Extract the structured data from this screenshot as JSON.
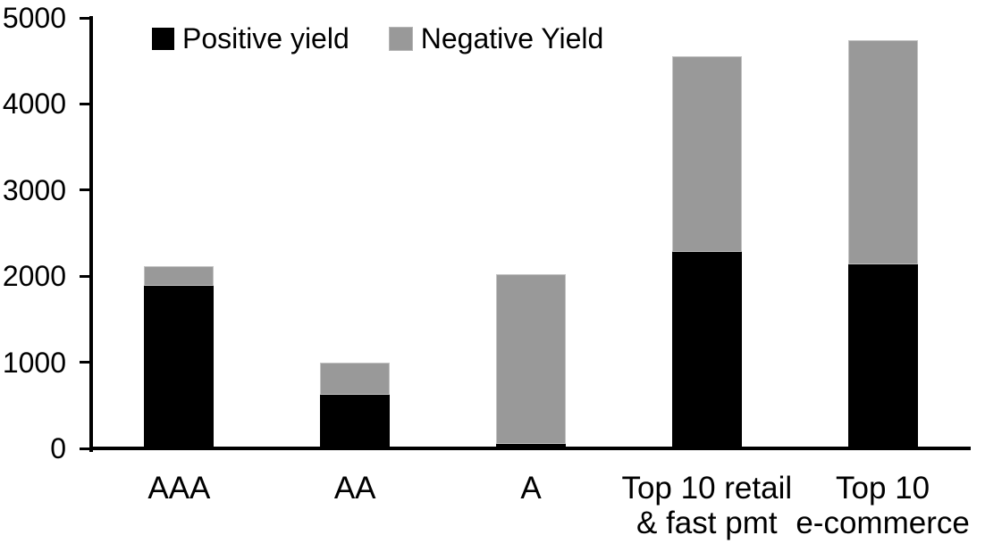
{
  "chart": {
    "background_color": "#ffffff",
    "axis_color": "#000000",
    "text_color": "#000000"
  },
  "chart_data": {
    "type": "bar",
    "stacked": true,
    "title": "",
    "xlabel": "",
    "ylabel": "",
    "categories": [
      "AAA",
      "AA",
      "A",
      "Top 10 retail & fast pmt",
      "Top 10 e-commerce"
    ],
    "category_label_lines": [
      [
        "AAA"
      ],
      [
        "AA"
      ],
      [
        "A"
      ],
      [
        "Top 10 retail",
        "& fast pmt"
      ],
      [
        "Top 10",
        "e-commerce"
      ]
    ],
    "series": [
      {
        "name": "Positive yield",
        "color": "#000000",
        "values": [
          1890,
          620,
          50,
          2280,
          2140
        ]
      },
      {
        "name": "Negative Yield",
        "color": "#999999",
        "values": [
          230,
          380,
          1970,
          2270,
          2600
        ]
      }
    ],
    "ylim": [
      0,
      5000
    ],
    "yticks": [
      0,
      1000,
      2000,
      3000,
      4000,
      5000
    ],
    "grid": false,
    "legend_position": "top-inside"
  }
}
